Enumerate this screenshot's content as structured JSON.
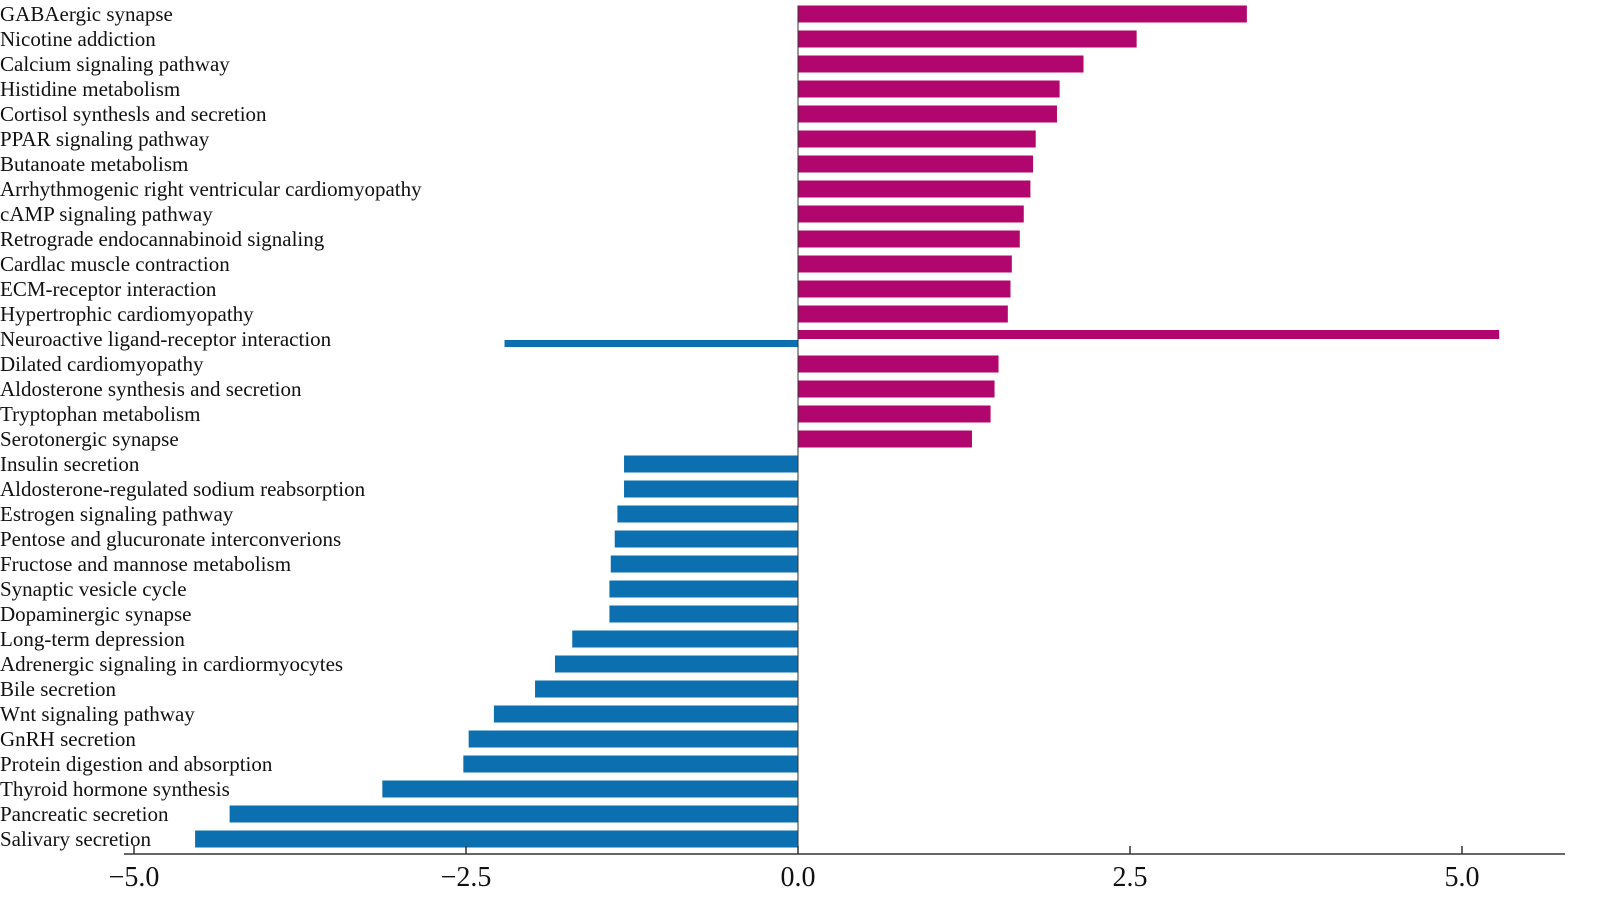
{
  "chart_data": {
    "type": "bar",
    "orientation": "horizontal",
    "xlim": [
      -5.0,
      5.8
    ],
    "ticks": [
      -5.0,
      -2.5,
      0.0,
      2.5,
      5.0
    ],
    "tick_labels": [
      "−5.0",
      "−2.5",
      "0.0",
      "2.5",
      "5.0"
    ],
    "colors": {
      "positive": "#b0066e",
      "negative": "#0b6fb0"
    },
    "categories": [
      "GABAergic synapse",
      "Nicotine addiction",
      "Calcium signaling pathway",
      "Histidine metabolism",
      "Cortisol synthesls and secretion",
      "PPAR signaling pathway",
      "Butanoate metabolism",
      "Arrhythmogenic right ventricular cardiomyopathy",
      "cAMP signaling pathway",
      "Retrograde endocannabinoid signaling",
      "Cardlac muscle contraction",
      "ECM-receptor interaction",
      "Hypertrophic cardiomyopathy",
      "Neuroactive ligand-receptor interaction",
      "Dilated cardiomyopathy",
      "Aldosterone synthesis and secretion",
      "Tryptophan metabolism",
      "Serotonergic synapse",
      "Insulin secretion",
      "Aldosterone-regulated sodium reabsorption",
      "Estrogen signaling pathway",
      "Pentose and glucuronate interconverions",
      "Fructose and mannose metabolism",
      "Synaptic vesicle cycle",
      "Dopaminergic synapse",
      "Long-term depression",
      "Adrenergic signaling in cardiormyocytes",
      "Bile secretion",
      "Wnt signaling pathway",
      "GnRH secretion",
      "Protein digestion and absorption",
      "Thyroid hormone synthesis",
      "Pancreatic secretion",
      "Salivary secretion"
    ],
    "series": [
      {
        "values": [
          3.38,
          2.55,
          2.15,
          1.97,
          1.95,
          1.79,
          1.77,
          1.75,
          1.7,
          1.67,
          1.61,
          1.6,
          1.58,
          5.28,
          1.51,
          1.48,
          1.45,
          1.31,
          0,
          0,
          0,
          0,
          0,
          0,
          0,
          0,
          0,
          0,
          0,
          0,
          0,
          0,
          0,
          0
        ]
      },
      {
        "values": [
          0,
          0,
          0,
          0,
          0,
          0,
          0,
          0,
          0,
          0,
          0,
          0,
          0,
          -2.21,
          0,
          0,
          0,
          0,
          -1.31,
          -1.31,
          -1.36,
          -1.38,
          -1.41,
          -1.42,
          -1.42,
          -1.7,
          -1.83,
          -1.98,
          -2.29,
          -2.48,
          -2.52,
          -3.13,
          -4.28,
          -4.54
        ]
      }
    ]
  }
}
